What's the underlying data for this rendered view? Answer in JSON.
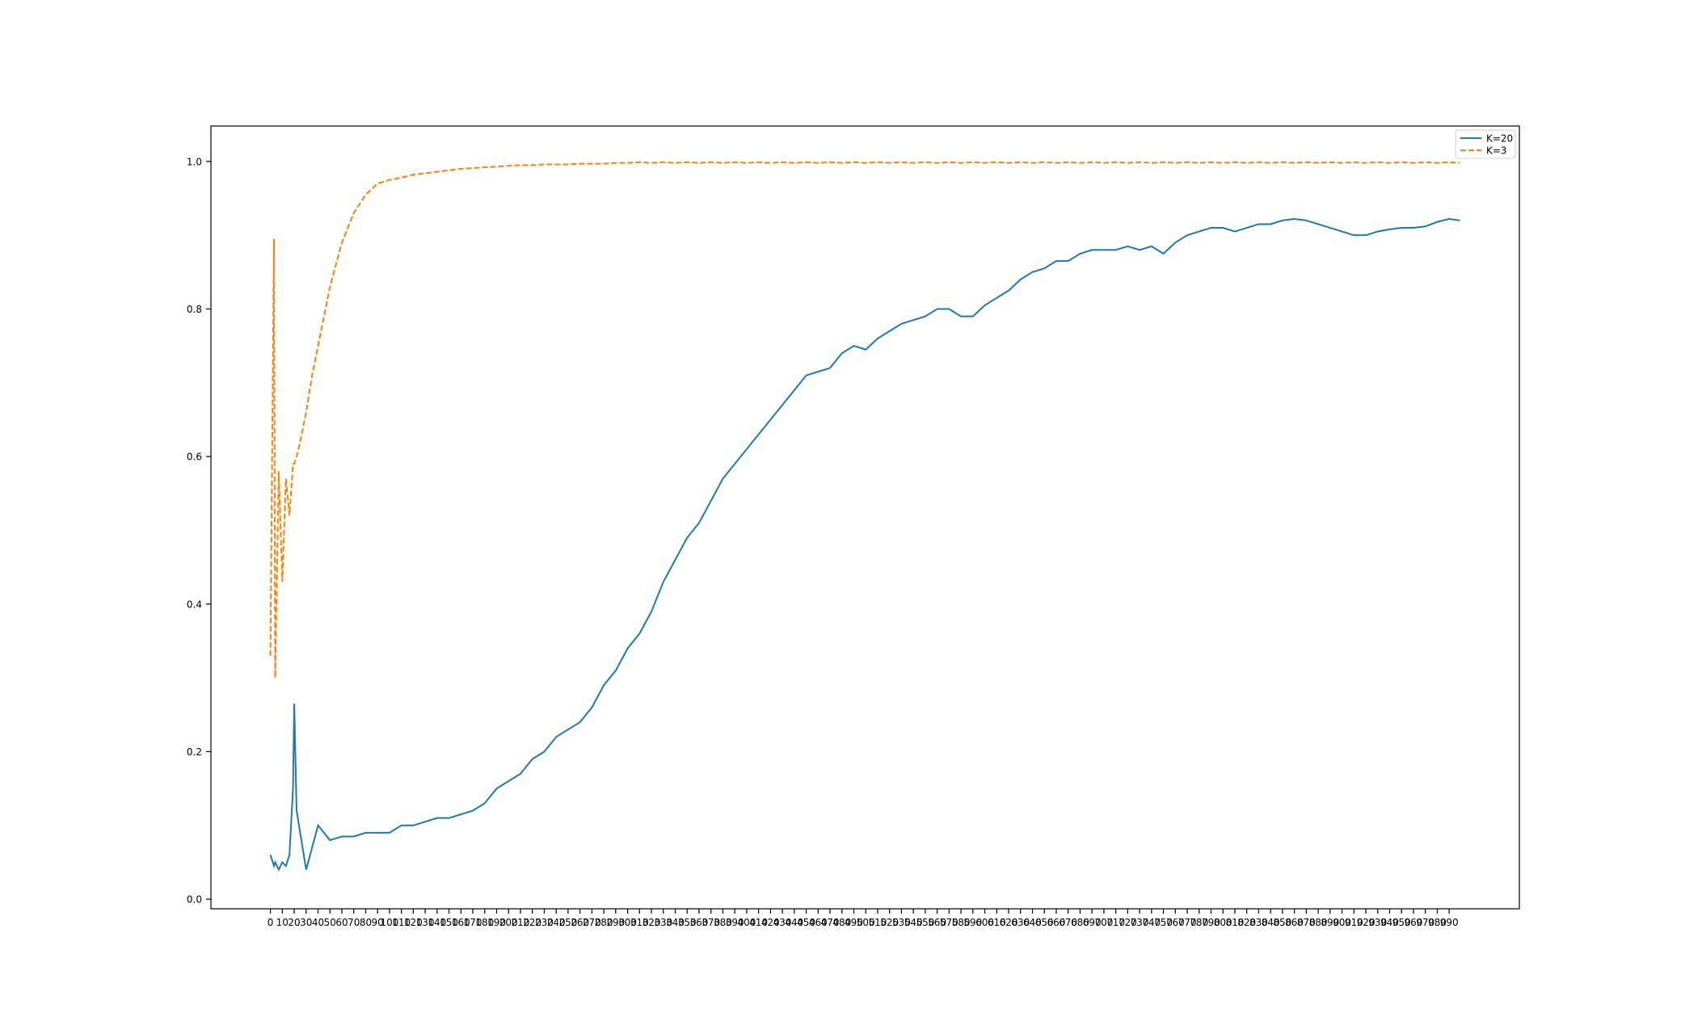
{
  "chart_data": {
    "type": "line",
    "x": [
      0,
      3,
      4,
      7,
      10,
      13,
      16,
      19,
      20,
      22,
      25,
      30,
      35,
      40,
      50,
      60,
      70,
      80,
      90,
      100,
      110,
      120,
      130,
      140,
      150,
      160,
      170,
      180,
      190,
      200,
      210,
      220,
      230,
      240,
      250,
      260,
      270,
      280,
      290,
      300,
      310,
      320,
      330,
      340,
      350,
      360,
      370,
      380,
      390,
      400,
      410,
      420,
      430,
      440,
      450,
      460,
      470,
      480,
      490,
      500,
      510,
      520,
      530,
      540,
      550,
      560,
      570,
      580,
      590,
      600,
      610,
      620,
      630,
      640,
      650,
      660,
      670,
      680,
      690,
      700,
      710,
      720,
      730,
      740,
      750,
      760,
      770,
      780,
      790,
      800,
      810,
      820,
      830,
      840,
      850,
      860,
      870,
      880,
      890,
      900,
      910,
      920,
      930,
      940,
      950,
      960,
      970,
      980,
      990,
      999
    ],
    "series": [
      {
        "name": "K=20",
        "color": "#1f77b4",
        "dash": false,
        "values": [
          0.06,
          0.045,
          0.05,
          0.04,
          0.05,
          0.045,
          0.06,
          0.15,
          0.265,
          0.12,
          0.09,
          0.04,
          0.07,
          0.1,
          0.08,
          0.085,
          0.085,
          0.09,
          0.09,
          0.09,
          0.1,
          0.1,
          0.105,
          0.11,
          0.11,
          0.115,
          0.12,
          0.13,
          0.15,
          0.16,
          0.17,
          0.19,
          0.2,
          0.22,
          0.23,
          0.24,
          0.26,
          0.29,
          0.31,
          0.34,
          0.36,
          0.39,
          0.43,
          0.46,
          0.49,
          0.51,
          0.54,
          0.57,
          0.59,
          0.61,
          0.63,
          0.65,
          0.67,
          0.69,
          0.71,
          0.715,
          0.72,
          0.74,
          0.75,
          0.745,
          0.76,
          0.77,
          0.78,
          0.785,
          0.79,
          0.8,
          0.8,
          0.79,
          0.79,
          0.805,
          0.815,
          0.825,
          0.84,
          0.85,
          0.855,
          0.865,
          0.865,
          0.875,
          0.88,
          0.88,
          0.88,
          0.885,
          0.88,
          0.885,
          0.875,
          0.89,
          0.9,
          0.905,
          0.91,
          0.91,
          0.905,
          0.91,
          0.915,
          0.915,
          0.92,
          0.922,
          0.92,
          0.915,
          0.91,
          0.905,
          0.9,
          0.9,
          0.905,
          0.908,
          0.91,
          0.91,
          0.912,
          0.918,
          0.922,
          0.92
        ]
      },
      {
        "name": "K=3",
        "color": "#ff7f0e",
        "dash": true,
        "values": [
          0.33,
          0.895,
          0.3,
          0.58,
          0.43,
          0.57,
          0.52,
          0.59,
          0.59,
          0.6,
          0.62,
          0.66,
          0.71,
          0.75,
          0.83,
          0.89,
          0.93,
          0.955,
          0.97,
          0.975,
          0.978,
          0.982,
          0.984,
          0.986,
          0.988,
          0.99,
          0.991,
          0.992,
          0.993,
          0.994,
          0.995,
          0.995,
          0.996,
          0.996,
          0.996,
          0.997,
          0.997,
          0.997,
          0.998,
          0.998,
          0.999,
          0.998,
          0.999,
          0.998,
          0.999,
          0.998,
          0.999,
          0.998,
          0.999,
          0.998,
          0.999,
          0.998,
          0.999,
          0.998,
          0.999,
          0.998,
          0.999,
          0.998,
          0.999,
          0.998,
          0.999,
          0.998,
          0.999,
          0.998,
          0.999,
          0.998,
          0.999,
          0.998,
          0.999,
          0.998,
          0.999,
          0.998,
          0.999,
          0.998,
          0.999,
          0.998,
          0.999,
          0.998,
          0.999,
          0.998,
          0.999,
          0.998,
          0.999,
          0.998,
          0.999,
          0.998,
          0.999,
          0.998,
          0.999,
          0.998,
          0.999,
          0.998,
          0.999,
          0.998,
          0.999,
          0.998,
          0.999,
          0.998,
          0.999,
          0.998,
          0.999,
          0.998,
          0.999,
          0.998,
          0.999,
          0.998,
          0.999,
          0.998,
          0.999,
          0.998
        ]
      }
    ],
    "xlim": [
      -49.95,
      1048.95
    ],
    "ylim": [
      -0.013,
      1.048
    ],
    "xticks": [
      0,
      10,
      20,
      30,
      40,
      50,
      60,
      70,
      80,
      90,
      100,
      110,
      120,
      130,
      140,
      150,
      160,
      170,
      180,
      190,
      200,
      210,
      220,
      230,
      240,
      250,
      260,
      270,
      280,
      290,
      300,
      310,
      320,
      330,
      340,
      350,
      360,
      370,
      380,
      390,
      400,
      410,
      420,
      430,
      440,
      450,
      460,
      470,
      480,
      490,
      500,
      510,
      520,
      530,
      540,
      550,
      560,
      570,
      580,
      590,
      600,
      610,
      620,
      630,
      640,
      650,
      660,
      670,
      680,
      690,
      700,
      710,
      720,
      730,
      740,
      750,
      760,
      770,
      780,
      790,
      800,
      810,
      820,
      830,
      840,
      850,
      860,
      870,
      880,
      890,
      900,
      910,
      920,
      930,
      940,
      950,
      960,
      970,
      980,
      990
    ],
    "yticks": [
      {
        "value": 0,
        "label": "0.0"
      },
      {
        "value": 0.2,
        "label": "0.2"
      },
      {
        "value": 0.4,
        "label": "0.4"
      },
      {
        "value": 0.6,
        "label": "0.6"
      },
      {
        "value": 0.8,
        "label": "0.8"
      },
      {
        "value": 1,
        "label": "1.0"
      }
    ],
    "legend": "upper right"
  }
}
